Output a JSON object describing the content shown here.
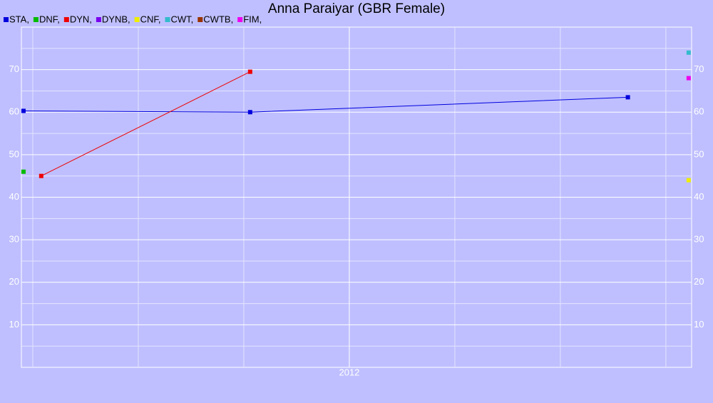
{
  "chart_data": {
    "type": "line",
    "title": "Anna Paraiyar (GBR Female)",
    "xlim": [
      2011.223,
      2012.811
    ],
    "xticks": [
      2012
    ],
    "xminor": [
      2011.25,
      2011.5,
      2011.75,
      2012.25,
      2012.5,
      2012.75
    ],
    "ylim": [
      0,
      80
    ],
    "yticks": [
      10,
      20,
      30,
      40,
      50,
      60,
      70
    ],
    "yminor": [
      5,
      15,
      25,
      35,
      45,
      55,
      65,
      75
    ],
    "grid": true,
    "series": [
      {
        "name": "STA,",
        "color": "#0000dd",
        "x": [
          2011.228,
          2011.765,
          2012.66
        ],
        "values": [
          60.3,
          60,
          63.5
        ]
      },
      {
        "name": "DNF,",
        "color": "#00bb00",
        "x": [
          2011.228
        ],
        "values": [
          46
        ]
      },
      {
        "name": "DYN,",
        "color": "#ee0000",
        "x": [
          2011.27,
          2011.765
        ],
        "values": [
          45,
          69.5
        ]
      },
      {
        "name": "DYNB,",
        "color": "#7a00ee",
        "x": [],
        "values": []
      },
      {
        "name": "CNF,",
        "color": "#eeee00",
        "x": [
          2012.804
        ],
        "values": [
          44
        ]
      },
      {
        "name": "CWT,",
        "color": "#33bbcc",
        "x": [
          2012.804
        ],
        "values": [
          74
        ]
      },
      {
        "name": "CWTB,",
        "color": "#993300",
        "x": [],
        "values": []
      },
      {
        "name": "FIM,",
        "color": "#ee00ee",
        "x": [
          2012.804
        ],
        "values": [
          68
        ]
      }
    ]
  }
}
